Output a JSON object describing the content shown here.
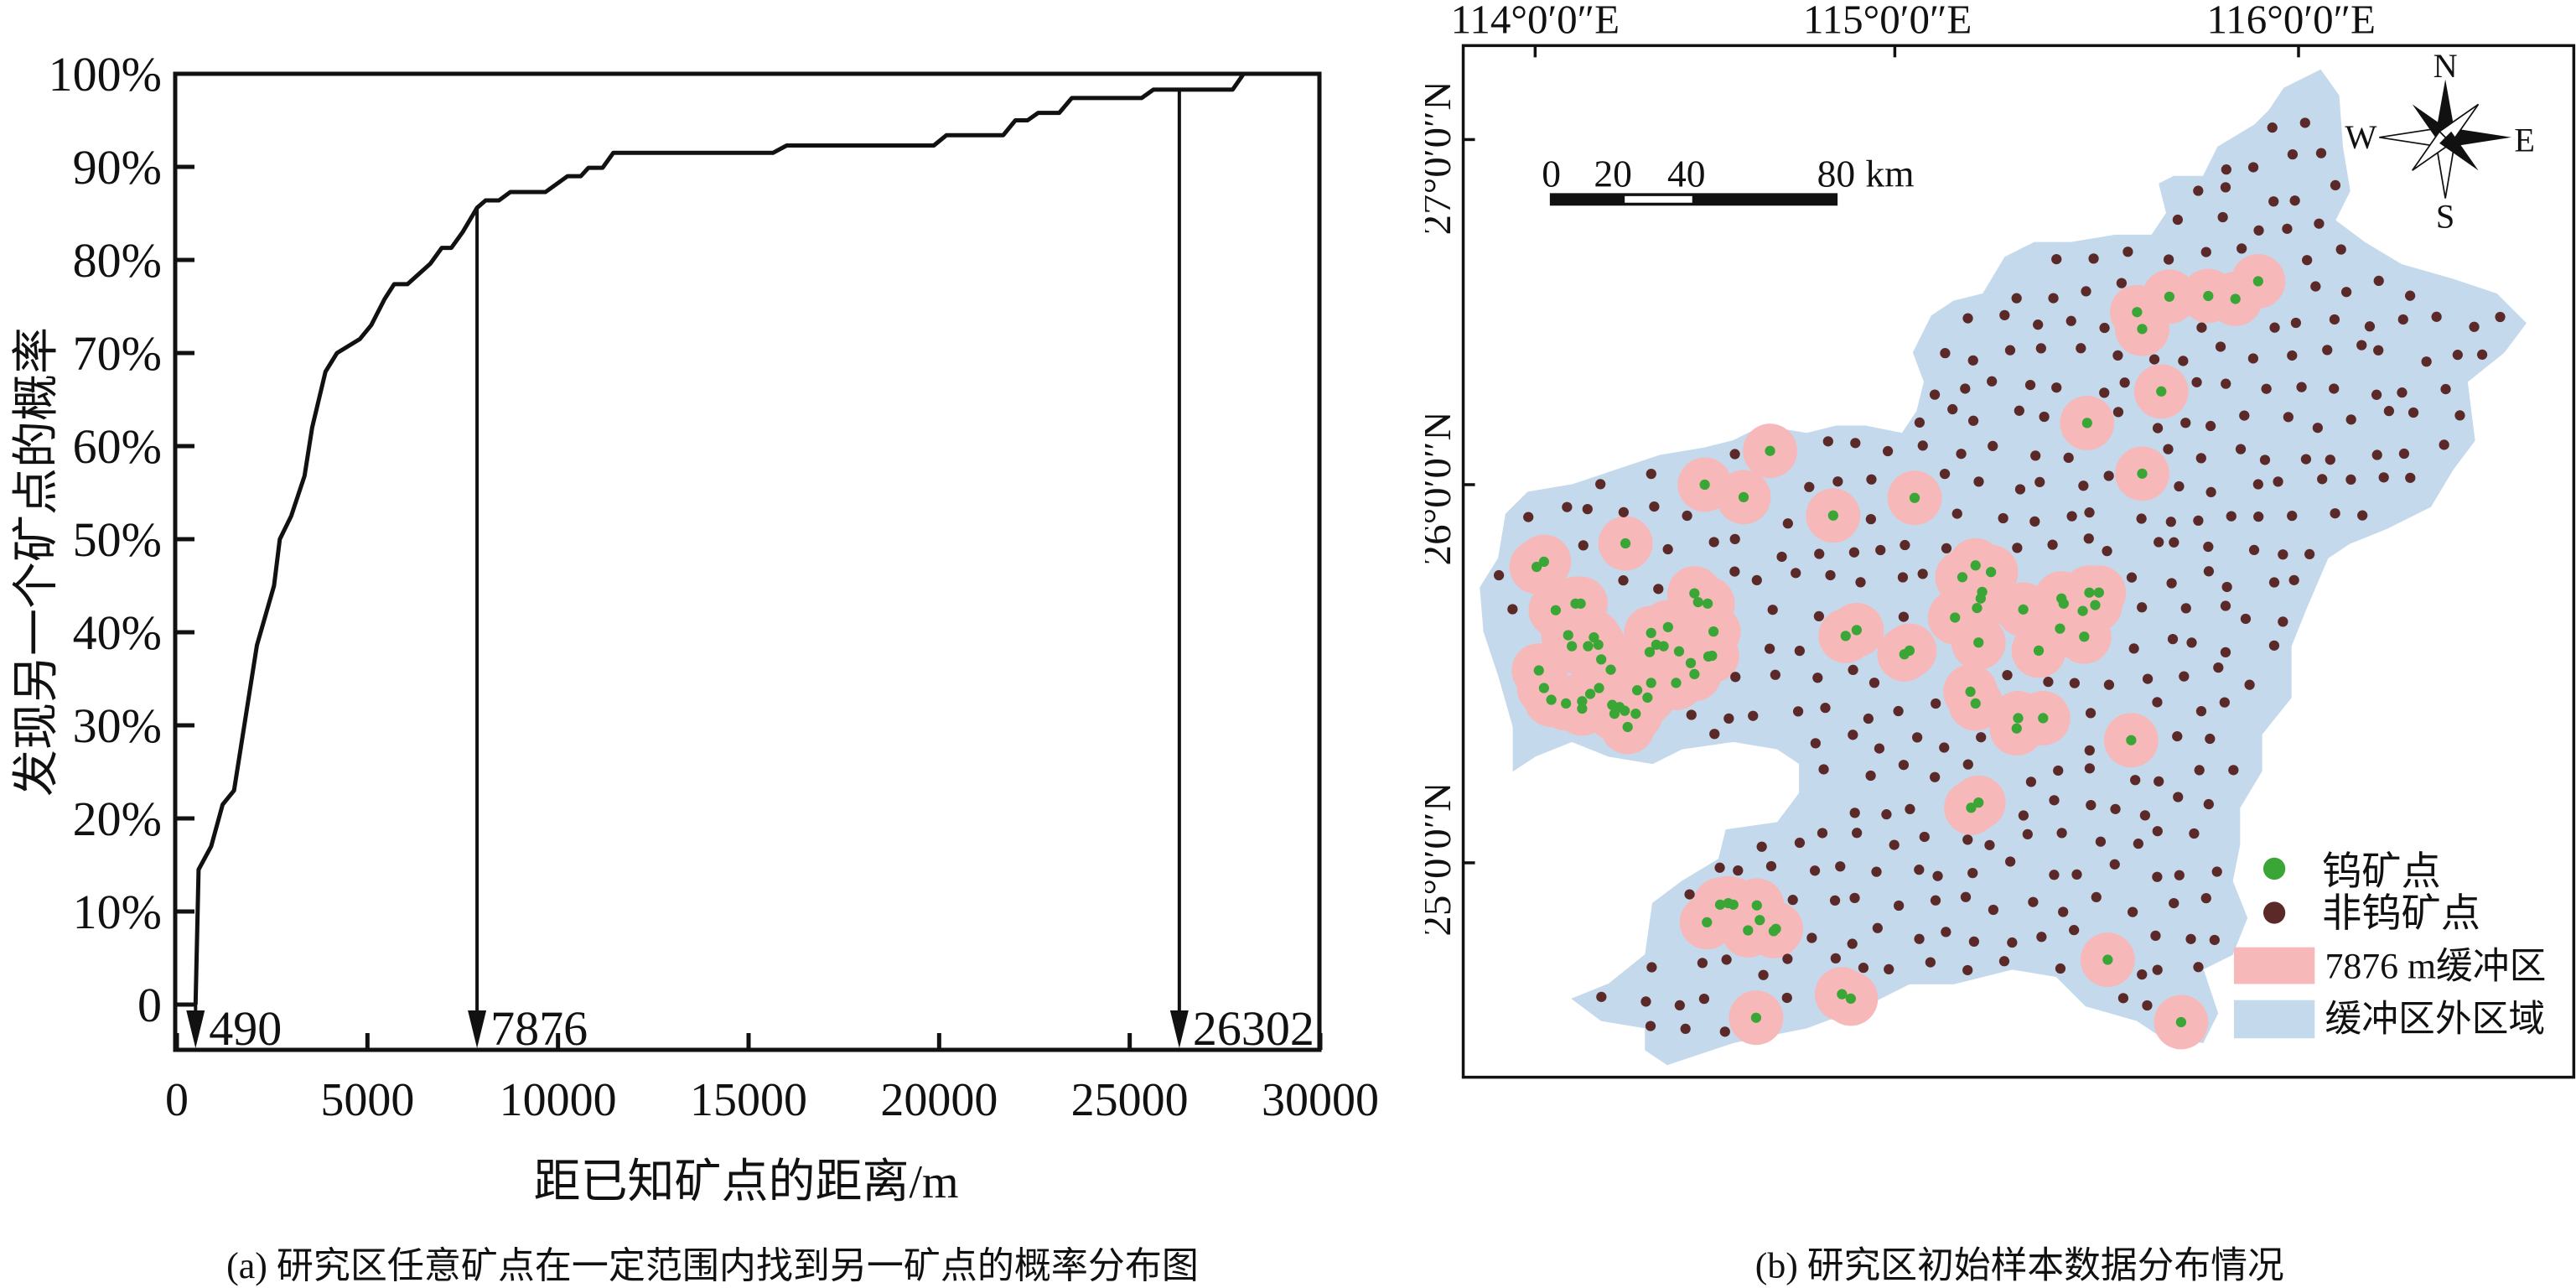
{
  "chart_data": [
    {
      "type": "line",
      "title": "",
      "xlabel": "距已知矿点的距离/m",
      "ylabel": "发现另一个矿点的概率",
      "caption": "(a) 研究区任意矿点在一定范围内找到另一矿点的概率分布图",
      "xlim": [
        0,
        30000
      ],
      "ylim": [
        0,
        100
      ],
      "x_ticks": [
        "0",
        "5000",
        "10000",
        "15000",
        "20000",
        "25000",
        "30000"
      ],
      "y_ticks": [
        "0",
        "10%",
        "20%",
        "30%",
        "40%",
        "50%",
        "60%",
        "70%",
        "80%",
        "90%",
        "100%"
      ],
      "grid": false,
      "series": [
        {
          "name": "probability",
          "x": [
            490,
            570,
            900,
            1200,
            1500,
            2100,
            2550,
            2700,
            3000,
            3350,
            3550,
            3900,
            4200,
            4800,
            5100,
            5450,
            5700,
            6050,
            6650,
            6950,
            7200,
            7500,
            7876,
            8100,
            8450,
            8750,
            9670,
            10250,
            10600,
            10800,
            11170,
            11450,
            15640,
            16000,
            19860,
            20190,
            21680,
            22000,
            22320,
            22600,
            23150,
            23480,
            25310,
            25620,
            27700,
            27990,
            30000
          ],
          "y": [
            0,
            14.5,
            17,
            21.5,
            23,
            38.6,
            45,
            50,
            52.5,
            56.8,
            62,
            68,
            70,
            71.5,
            73,
            75.8,
            77.4,
            77.4,
            79.6,
            81.3,
            81.3,
            83,
            85.6,
            86.4,
            86.4,
            87.3,
            87.3,
            89,
            89,
            89.9,
            89.9,
            91.5,
            91.5,
            92.3,
            92.3,
            93.4,
            93.4,
            95,
            95,
            95.8,
            95.8,
            97.4,
            97.4,
            98.3,
            98.3,
            100,
            100
          ]
        }
      ],
      "annotations": [
        {
          "x": 490,
          "label": "490"
        },
        {
          "x": 7876,
          "label": "7876"
        },
        {
          "x": 26302,
          "label": "26302"
        }
      ]
    }
  ],
  "map": {
    "caption": "(b) 研究区初始样本数据分布情况",
    "lon_labels": [
      "114°0′0″E",
      "115°0′0″E",
      "116°0′0″E"
    ],
    "lat_labels": [
      "27°0′0″N",
      "26°0′0″N",
      "25°0′0″N"
    ],
    "scale_labels": [
      "0",
      "20",
      "40",
      "80"
    ],
    "scale_unit": "km",
    "compass": {
      "n": "N",
      "s": "S",
      "e": "E",
      "w": "W"
    },
    "legend": [
      {
        "label": "钨矿点",
        "color": "#3aa635"
      },
      {
        "label": "非钨矿点",
        "color": "#5b2a28"
      },
      {
        "label": "7876 m缓冲区",
        "color": "#f6b8b9"
      },
      {
        "label": "缓冲区外区域",
        "color": "#c5d9ec"
      }
    ]
  }
}
